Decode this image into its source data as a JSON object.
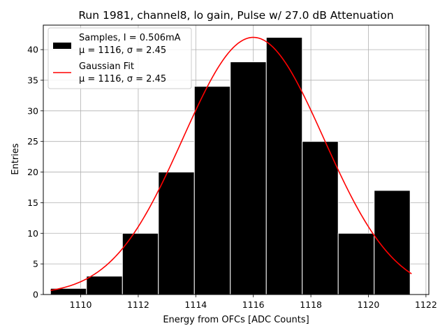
{
  "chart_data": {
    "type": "bar",
    "title": "Run 1981, channel8, lo gain, Pulse w/ 27.0 dB Attenuation",
    "xlabel": "Energy from OFCs [ADC Counts]",
    "ylabel": "Entries",
    "xlim": [
      1108.7,
      1122.1
    ],
    "ylim": [
      0,
      44
    ],
    "xticks": [
      1110,
      1112,
      1114,
      1116,
      1118,
      1120,
      1122
    ],
    "yticks": [
      0,
      5,
      10,
      15,
      20,
      25,
      30,
      35,
      40
    ],
    "grid": true,
    "legend_position": "top-left",
    "bin_edges": [
      1108.95,
      1110.2,
      1111.45,
      1112.7,
      1113.95,
      1115.2,
      1116.45,
      1117.7,
      1118.95,
      1120.2,
      1121.45
    ],
    "bin_centers": [
      1109.6,
      1110.8,
      1112.1,
      1113.3,
      1114.6,
      1115.8,
      1117.1,
      1118.3,
      1119.6,
      1120.8
    ],
    "values": [
      1,
      3,
      10,
      20,
      34,
      38,
      42,
      25,
      10,
      17
    ],
    "fit": {
      "type": "gaussian",
      "amplitude": 42,
      "mu": 1116.0,
      "sigma": 2.45,
      "x_range": [
        1108.95,
        1121.5
      ]
    },
    "series": [
      {
        "name": "Samples, I = 0.506mA",
        "stats": "μ = 1116, σ = 2.45",
        "color": "#000000"
      },
      {
        "name": "Gaussian Fit",
        "stats": "μ = 1116, σ = 2.45",
        "color": "#ff0000"
      }
    ]
  }
}
